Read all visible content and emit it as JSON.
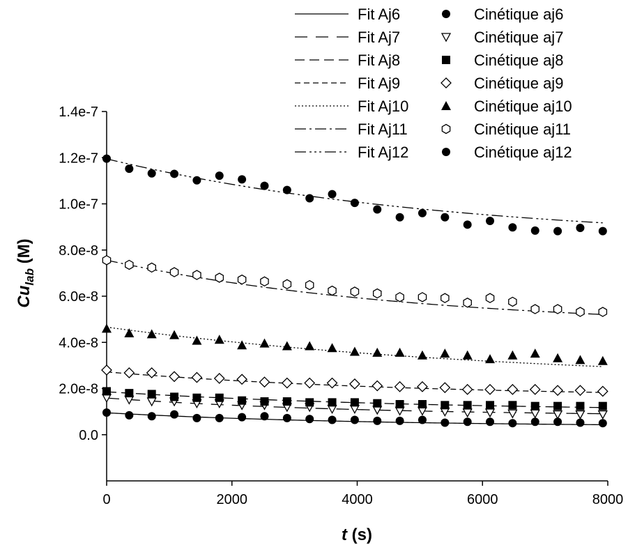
{
  "chart_data": {
    "type": "scatter",
    "xlabel": {
      "var": "t",
      "unit": " (s)"
    },
    "ylabel": {
      "var": "Cu",
      "sub": "lab",
      "unit": " (M)"
    },
    "xlim": [
      0,
      8000
    ],
    "ylim": [
      -2e-08,
      1.4e-07
    ],
    "xticks": [
      0,
      2000,
      4000,
      6000,
      8000
    ],
    "xtick_labels": [
      "0",
      "2000",
      "4000",
      "6000",
      "8000"
    ],
    "yticks": [
      0,
      2e-08,
      4e-08,
      6e-08,
      8e-08,
      1e-07,
      1.2e-07,
      1.4e-07
    ],
    "ytick_labels": [
      "0.0",
      "2.0e-8",
      "4.0e-8",
      "6.0e-8",
      "8.0e-8",
      "1.0e-7",
      "1.2e-7",
      "1.4e-7"
    ],
    "grid": false,
    "legend_position": "top-right",
    "x": [
      0,
      360,
      720,
      1080,
      1440,
      1800,
      2160,
      2520,
      2880,
      3240,
      3600,
      3960,
      4320,
      4680,
      5040,
      5400,
      5760,
      6120,
      6480,
      6840,
      7200,
      7560,
      7920
    ],
    "series": [
      {
        "fit_name": "Fit Aj6",
        "data_name": "Cinétique aj6",
        "marker": "circle-filled",
        "dash": "",
        "fit": {
          "a": 3.5e-09,
          "b": 6e-09,
          "k": 0.00025
        },
        "y": [
          9.6e-09,
          8.4e-09,
          8e-09,
          8.8e-09,
          7.2e-09,
          7.2e-09,
          7.6e-09,
          8e-09,
          7.2e-09,
          6.8e-09,
          6.4e-09,
          6.4e-09,
          6e-09,
          6e-09,
          6.4e-09,
          5.2e-09,
          5.6e-09,
          5.6e-09,
          5e-09,
          5.6e-09,
          5.6e-09,
          5.2e-09,
          5e-09
        ]
      },
      {
        "fit_name": "Fit Aj7",
        "data_name": "Cinétique aj7",
        "marker": "triangle-down-open",
        "dash": "18 12",
        "fit": {
          "a": 8e-09,
          "b": 7.9e-09,
          "k": 0.00025
        },
        "y": [
          1.6e-08,
          1.52e-08,
          1.44e-08,
          1.44e-08,
          1.36e-08,
          1.36e-08,
          1.28e-08,
          1.28e-08,
          1.2e-08,
          1.2e-08,
          1.12e-08,
          1.12e-08,
          1.08e-08,
          1.04e-08,
          1.04e-08,
          1e-08,
          9.6e-09,
          9.6e-09,
          9.2e-09,
          9.2e-09,
          8.8e-09,
          8.8e-09,
          8.8e-09
        ]
      },
      {
        "fit_name": "Fit Aj8",
        "data_name": "Cinétique aj8",
        "marker": "square-filled",
        "dash": "14 7",
        "fit": {
          "a": 1e-08,
          "b": 8.6e-09,
          "k": 0.0002
        },
        "y": [
          1.88e-08,
          1.8e-08,
          1.76e-08,
          1.64e-08,
          1.6e-08,
          1.6e-08,
          1.48e-08,
          1.44e-08,
          1.44e-08,
          1.4e-08,
          1.4e-08,
          1.4e-08,
          1.36e-08,
          1.32e-08,
          1.32e-08,
          1.28e-08,
          1.28e-08,
          1.28e-08,
          1.28e-08,
          1.24e-08,
          1.24e-08,
          1.24e-08,
          1.24e-08
        ]
      },
      {
        "fit_name": "Fit Aj9",
        "data_name": "Cinétique aj9",
        "marker": "diamond-open",
        "dash": "8 5",
        "fit": {
          "a": 1.6e-08,
          "b": 1.12e-08,
          "k": 0.0002
        },
        "y": [
          2.8e-08,
          2.68e-08,
          2.68e-08,
          2.52e-08,
          2.48e-08,
          2.44e-08,
          2.4e-08,
          2.28e-08,
          2.24e-08,
          2.24e-08,
          2.24e-08,
          2.2e-08,
          2.12e-08,
          2.08e-08,
          2.08e-08,
          2.04e-08,
          1.96e-08,
          1.96e-08,
          1.96e-08,
          1.96e-08,
          1.92e-08,
          1.92e-08,
          1.88e-08
        ]
      },
      {
        "fit_name": "Fit Aj10",
        "data_name": "Cinétique aj10",
        "marker": "triangle-up-filled",
        "dash": "2 3",
        "fit": {
          "a": 2.2e-08,
          "b": 2.46e-08,
          "k": 0.00015
        },
        "y": [
          4.6e-08,
          4.4e-08,
          4.36e-08,
          4.32e-08,
          4.08e-08,
          4.12e-08,
          3.88e-08,
          3.96e-08,
          3.84e-08,
          3.84e-08,
          3.76e-08,
          3.6e-08,
          3.56e-08,
          3.56e-08,
          3.44e-08,
          3.52e-08,
          3.44e-08,
          3.28e-08,
          3.44e-08,
          3.52e-08,
          3.32e-08,
          3.24e-08,
          3.2e-08
        ]
      },
      {
        "fit_name": "Fit Aj11",
        "data_name": "Cinétique aj11",
        "marker": "hexagon-open",
        "dash": "16 5 3 5",
        "fit": {
          "a": 4.6e-08,
          "b": 2.96e-08,
          "k": 0.0002
        },
        "y": [
          7.56e-08,
          7.36e-08,
          7.24e-08,
          7.04e-08,
          6.92e-08,
          6.8e-08,
          6.72e-08,
          6.64e-08,
          6.52e-08,
          6.48e-08,
          6.24e-08,
          6.2e-08,
          6.12e-08,
          5.96e-08,
          5.96e-08,
          5.92e-08,
          5.72e-08,
          5.92e-08,
          5.76e-08,
          5.44e-08,
          5.44e-08,
          5.32e-08,
          5.32e-08
        ]
      },
      {
        "fit_name": "Fit Aj12",
        "data_name": "Cinétique aj12",
        "marker": "circle-filled",
        "dash": "16 5 3 4 3 4 3 5",
        "fit": {
          "a": 8.3e-08,
          "b": 3.65e-08,
          "k": 0.00018
        },
        "y": [
          1.196e-07,
          1.152e-07,
          1.132e-07,
          1.13e-07,
          1.102e-07,
          1.122e-07,
          1.106e-07,
          1.078e-07,
          1.06e-07,
          1.024e-07,
          1.042e-07,
          1.004e-07,
          9.76e-08,
          9.42e-08,
          9.6e-08,
          9.42e-08,
          9.1e-08,
          9.26e-08,
          8.98e-08,
          8.84e-08,
          8.82e-08,
          8.96e-08,
          8.82e-08
        ]
      }
    ]
  }
}
